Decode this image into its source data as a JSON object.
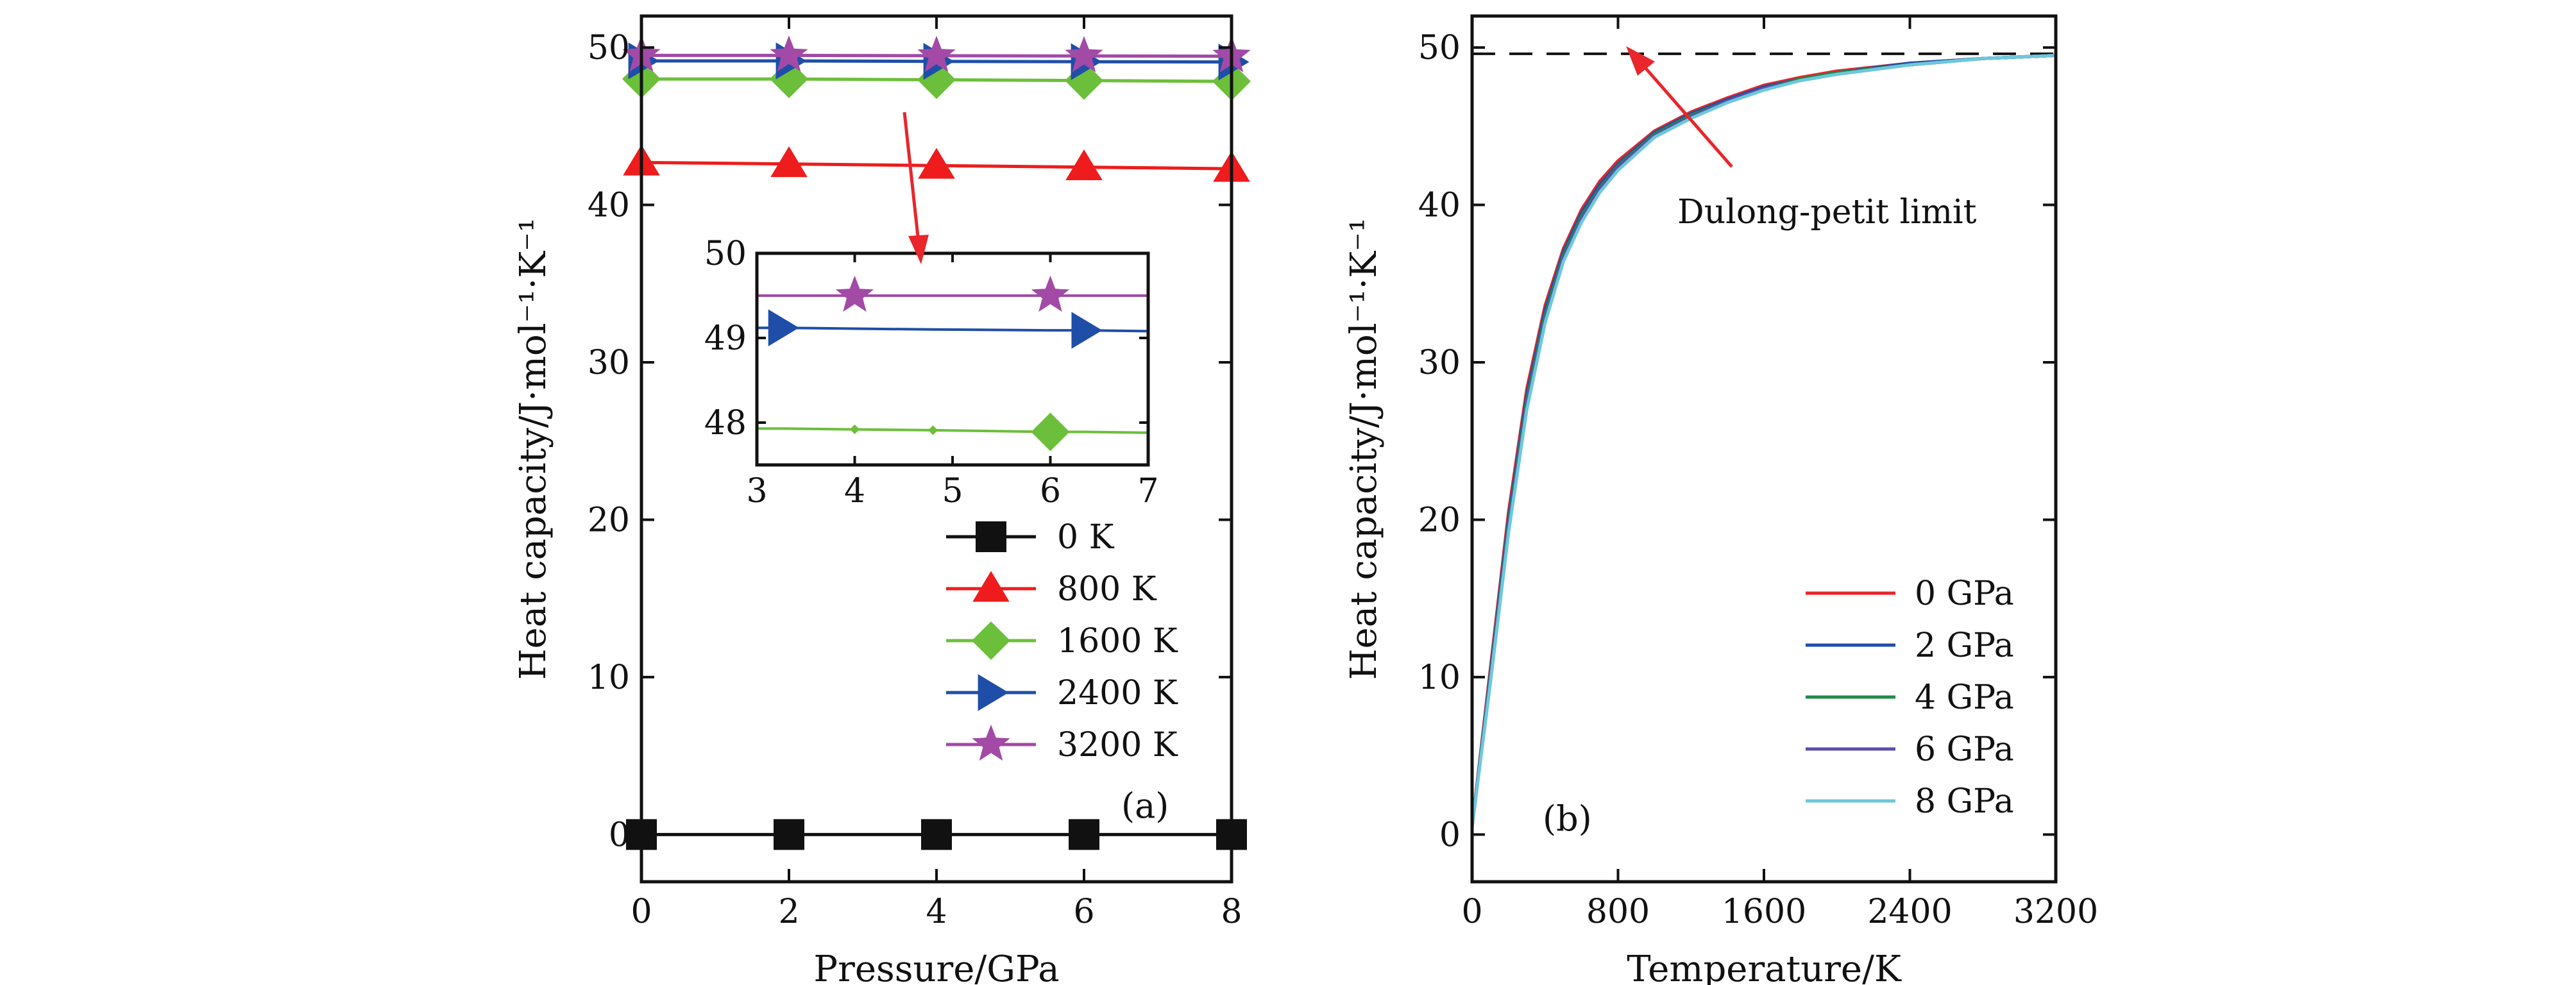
{
  "colors": {
    "0 K": "#111111",
    "800 K": "#ee1c1c",
    "1600 K": "#6cbf3a",
    "2400 K": "#1f4ea8",
    "3200 K": "#a24aa6",
    "0 GPa": "#e8262b",
    "2 GPa": "#1f4ea8",
    "4 GPa": "#1d8a4a",
    "6 GPa": "#5a4ea8",
    "8 GPa": "#6cc8dc",
    "arrow": "#e8262b",
    "axis": "#111111"
  },
  "chart_data": [
    {
      "type": "line",
      "panel_label": "(a)",
      "xlabel": "Pressure/GPa",
      "ylabel": "Heat capacity/J·mol⁻¹·K⁻¹",
      "xlim": [
        0,
        8
      ],
      "ylim": [
        -3,
        52
      ],
      "xticks": [
        0,
        2,
        4,
        6,
        8
      ],
      "yticks": [
        0,
        10,
        20,
        30,
        40,
        50
      ],
      "x": [
        0,
        2,
        4,
        6,
        8
      ],
      "legend_position": "lower-right",
      "series": [
        {
          "name": "0 K",
          "marker": "square",
          "values": [
            0,
            0,
            0,
            0,
            0
          ]
        },
        {
          "name": "800 K",
          "marker": "triangle",
          "values": [
            42.7,
            42.6,
            42.5,
            42.4,
            42.3
          ]
        },
        {
          "name": "1600 K",
          "marker": "diamond",
          "values": [
            48.0,
            48.0,
            47.95,
            47.9,
            47.85
          ]
        },
        {
          "name": "2400 K",
          "marker": "triangle-right",
          "values": [
            49.15,
            49.15,
            49.12,
            49.1,
            49.08
          ]
        },
        {
          "name": "3200 K",
          "marker": "star",
          "values": [
            49.5,
            49.5,
            49.48,
            49.46,
            49.45
          ]
        }
      ],
      "inset": {
        "xlim": [
          3,
          7
        ],
        "ylim": [
          47.5,
          50.0
        ],
        "xticks": [
          3,
          4,
          5,
          6,
          7
        ],
        "yticks": [
          48,
          49,
          50
        ],
        "x": [
          3,
          3.25,
          4,
          4.8,
          6,
          6.35,
          7
        ],
        "series": [
          {
            "name": "1600 K",
            "marker": "diamond",
            "values": [
              47.93,
              47.93,
              47.92,
              47.91,
              47.89,
              47.89,
              47.88
            ]
          },
          {
            "name": "2400 K",
            "marker": "triangle-right",
            "values": [
              49.12,
              49.12,
              49.11,
              49.1,
              49.09,
              49.09,
              49.08
            ]
          },
          {
            "name": "3200 K",
            "marker": "star",
            "values": [
              49.5,
              49.5,
              49.5,
              49.5,
              49.5,
              49.5,
              49.5
            ]
          }
        ],
        "marker_x": {
          "1600 K": [
            6
          ],
          "2400 K": [
            3.25,
            6.35
          ],
          "3200 K": [
            4,
            6
          ]
        }
      }
    },
    {
      "type": "line",
      "panel_label": "(b)",
      "xlabel": "Temperature/K",
      "ylabel": "Heat capacity/J·mol⁻¹·K⁻¹",
      "xlim": [
        0,
        3200
      ],
      "ylim": [
        -3,
        52
      ],
      "xticks": [
        0,
        800,
        1600,
        2400,
        3200
      ],
      "yticks": [
        0,
        10,
        20,
        30,
        40,
        50
      ],
      "x": [
        0,
        100,
        200,
        300,
        400,
        500,
        600,
        700,
        800,
        1000,
        1200,
        1400,
        1600,
        1800,
        2000,
        2400,
        2800,
        3200
      ],
      "legend_position": "lower-right",
      "series": [
        {
          "name": "0 GPa",
          "values": [
            0.5,
            10.5,
            20.5,
            28.3,
            33.6,
            37.2,
            39.7,
            41.5,
            42.8,
            44.7,
            45.9,
            46.8,
            47.6,
            48.1,
            48.5,
            49.0,
            49.3,
            49.5
          ]
        },
        {
          "name": "2 GPa",
          "values": [
            0.5,
            10.2,
            20.1,
            27.9,
            33.3,
            37.0,
            39.5,
            41.3,
            42.6,
            44.6,
            45.8,
            46.7,
            47.5,
            48.0,
            48.4,
            49.0,
            49.3,
            49.5
          ]
        },
        {
          "name": "4 GPa",
          "values": [
            0.5,
            10.0,
            19.8,
            27.6,
            33.0,
            36.8,
            39.3,
            41.1,
            42.5,
            44.5,
            45.7,
            46.6,
            47.4,
            48.0,
            48.4,
            48.9,
            49.3,
            49.5
          ]
        },
        {
          "name": "6 GPa",
          "values": [
            0.5,
            9.8,
            19.5,
            27.3,
            32.7,
            36.6,
            39.1,
            41.0,
            42.4,
            44.4,
            45.6,
            46.6,
            47.4,
            47.9,
            48.3,
            48.9,
            49.3,
            49.5
          ]
        },
        {
          "name": "8 GPa",
          "values": [
            0.5,
            9.6,
            19.2,
            27.0,
            32.5,
            36.4,
            38.9,
            40.8,
            42.2,
            44.3,
            45.5,
            46.5,
            47.3,
            47.9,
            48.3,
            48.9,
            49.3,
            49.5
          ]
        }
      ],
      "reference_line": {
        "label": "Dulong-petit limit",
        "value": 49.6,
        "style": "dashed"
      }
    }
  ]
}
